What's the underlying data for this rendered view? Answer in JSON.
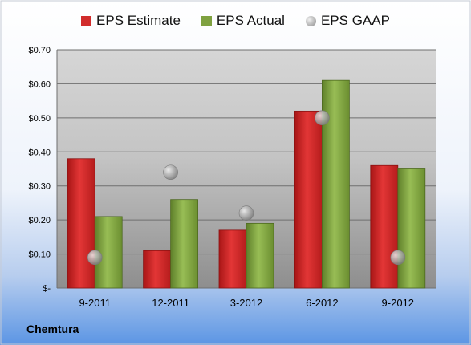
{
  "chart_data": {
    "type": "bar",
    "title": "",
    "categories": [
      "9-2011",
      "12-2011",
      "3-2012",
      "6-2012",
      "9-2012"
    ],
    "series": [
      {
        "name": "EPS Estimate",
        "kind": "bar",
        "color": "#d12c2c",
        "values": [
          0.38,
          0.11,
          0.17,
          0.52,
          0.36
        ]
      },
      {
        "name": "EPS Actual",
        "kind": "bar",
        "color": "#7fa140",
        "values": [
          0.21,
          0.26,
          0.19,
          0.61,
          0.35
        ]
      },
      {
        "name": "EPS GAAP",
        "kind": "marker",
        "color": "#b8b8b8",
        "values": [
          0.09,
          0.34,
          0.22,
          0.5,
          0.09
        ]
      }
    ],
    "yticks": [
      "$-",
      "$0.10",
      "$0.20",
      "$0.30",
      "$0.40",
      "$0.50",
      "$0.60",
      "$0.70"
    ],
    "ylim": [
      0,
      0.7
    ],
    "grid": true,
    "legend": "top",
    "xlabel": "",
    "ylabel": ""
  },
  "footer": {
    "company": "Chemtura"
  }
}
